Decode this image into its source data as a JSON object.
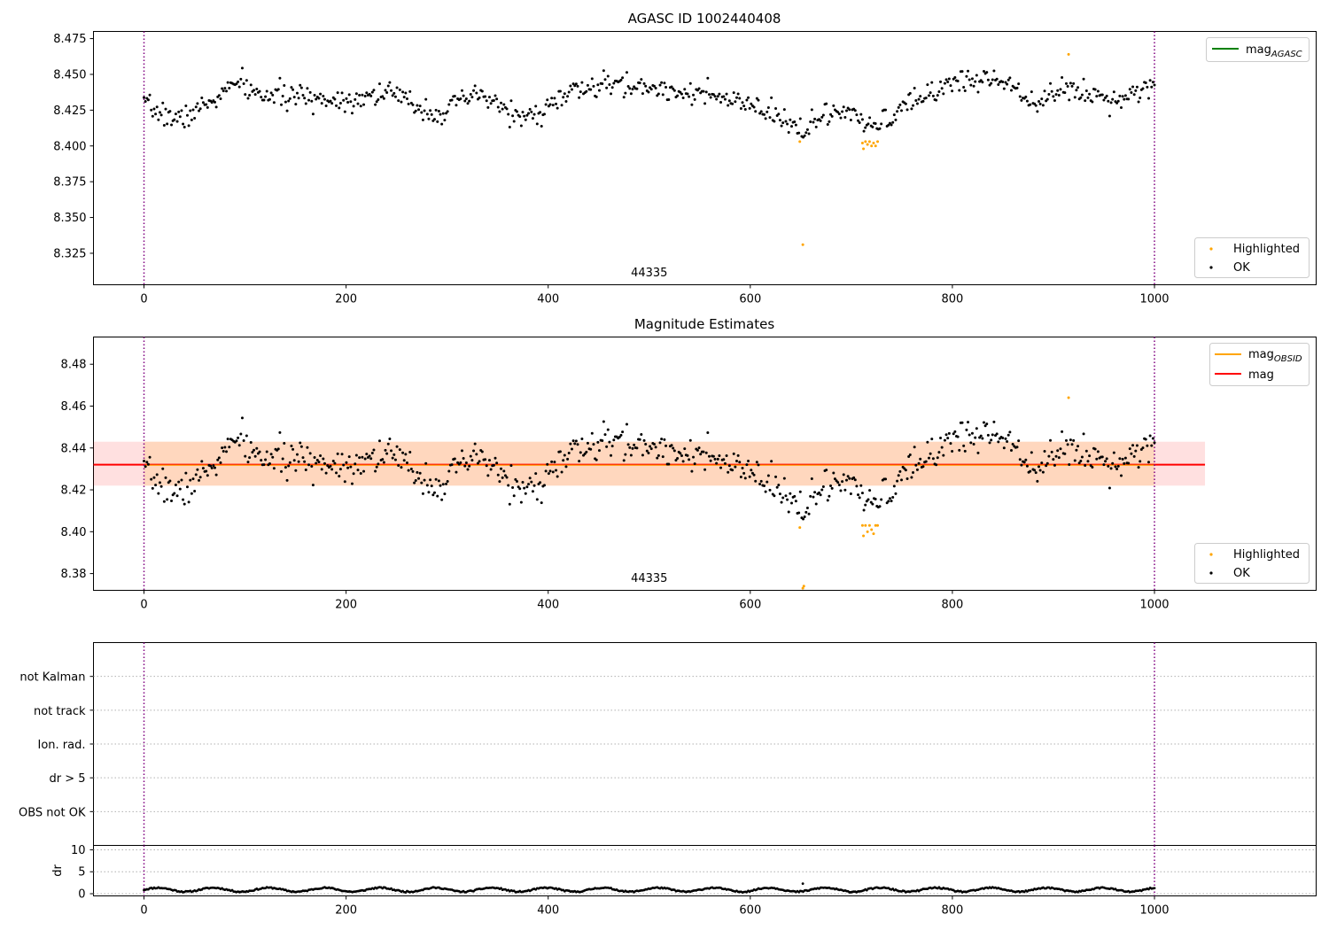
{
  "chart_data": [
    {
      "type": "scatter",
      "title": "AGASC ID 1002440408",
      "xlim": [
        -50,
        1160
      ],
      "ylim": [
        8.303,
        8.48
      ],
      "xticks": [
        0,
        200,
        400,
        600,
        800,
        1000
      ],
      "yticks": [
        8.325,
        8.35,
        8.375,
        8.4,
        8.425,
        8.45,
        8.475
      ],
      "ytick_labels": [
        "8.325",
        "8.350",
        "8.375",
        "8.400",
        "8.425",
        "8.450",
        "8.475"
      ],
      "vlines": [
        0,
        1000
      ],
      "obsid_label": {
        "text": "44335",
        "x": 500
      },
      "legend_lines": [
        {
          "label": "mag",
          "sub": "AGASC",
          "color": "#008000"
        }
      ],
      "legend_points": [
        {
          "label": "Highlighted",
          "color": "#ffa500"
        },
        {
          "label": "OK",
          "color": "#000000"
        }
      ],
      "highlighted_points": [
        [
          649,
          8.403
        ],
        [
          652,
          8.331
        ],
        [
          711,
          8.402
        ],
        [
          712,
          8.398
        ],
        [
          714,
          8.403
        ],
        [
          716,
          8.401
        ],
        [
          718,
          8.403
        ],
        [
          720,
          8.4
        ],
        [
          722,
          8.402
        ],
        [
          724,
          8.4
        ],
        [
          726,
          8.403
        ],
        [
          915,
          8.464
        ]
      ],
      "series_trend": {
        "knots": [
          [
            0,
            8.428
          ],
          [
            35,
            8.418
          ],
          [
            60,
            8.428
          ],
          [
            95,
            8.445
          ],
          [
            110,
            8.436
          ],
          [
            200,
            8.432
          ],
          [
            240,
            8.438
          ],
          [
            290,
            8.422
          ],
          [
            330,
            8.436
          ],
          [
            380,
            8.418
          ],
          [
            420,
            8.437
          ],
          [
            460,
            8.443
          ],
          [
            540,
            8.438
          ],
          [
            600,
            8.428
          ],
          [
            650,
            8.412
          ],
          [
            690,
            8.425
          ],
          [
            720,
            8.412
          ],
          [
            760,
            8.43
          ],
          [
            800,
            8.445
          ],
          [
            850,
            8.447
          ],
          [
            880,
            8.432
          ],
          [
            920,
            8.44
          ],
          [
            960,
            8.432
          ],
          [
            1000,
            8.444
          ]
        ],
        "n_points": 700,
        "noise": 0.004,
        "seed": 7
      }
    },
    {
      "type": "scatter",
      "title": "Magnitude Estimates",
      "xlim": [
        -50,
        1160
      ],
      "ylim": [
        8.372,
        8.493
      ],
      "xticks": [
        0,
        200,
        400,
        600,
        800,
        1000
      ],
      "yticks": [
        8.38,
        8.4,
        8.42,
        8.44,
        8.46,
        8.48
      ],
      "ytick_labels": [
        "8.38",
        "8.40",
        "8.42",
        "8.44",
        "8.46",
        "8.48"
      ],
      "vlines": [
        0,
        1000
      ],
      "mag_band": {
        "mag": 8.432,
        "low": 8.422,
        "high": 8.443,
        "x_end": 1050
      },
      "mag_obsid_line": {
        "value": 8.432,
        "x_start": 0,
        "x_end": 1000
      },
      "obsid_label": {
        "text": "44335",
        "x": 500
      },
      "legend_lines": [
        {
          "label": "mag",
          "sub": "OBSID",
          "color": "#ffa500"
        },
        {
          "label": "mag",
          "sub": "",
          "color": "#ff0000"
        }
      ],
      "legend_points": [
        {
          "label": "Highlighted",
          "color": "#ffa500"
        },
        {
          "label": "OK",
          "color": "#000000"
        }
      ],
      "highlighted_points": [
        [
          649,
          8.402
        ],
        [
          652,
          8.373
        ],
        [
          653,
          8.374
        ],
        [
          711,
          8.403
        ],
        [
          712,
          8.398
        ],
        [
          714,
          8.403
        ],
        [
          716,
          8.4
        ],
        [
          718,
          8.403
        ],
        [
          720,
          8.401
        ],
        [
          722,
          8.399
        ],
        [
          724,
          8.403
        ],
        [
          726,
          8.403
        ],
        [
          915,
          8.464
        ]
      ],
      "series_trend": {
        "knots": [
          [
            0,
            8.428
          ],
          [
            35,
            8.418
          ],
          [
            60,
            8.428
          ],
          [
            95,
            8.445
          ],
          [
            110,
            8.436
          ],
          [
            200,
            8.432
          ],
          [
            240,
            8.438
          ],
          [
            290,
            8.422
          ],
          [
            330,
            8.436
          ],
          [
            380,
            8.418
          ],
          [
            420,
            8.437
          ],
          [
            460,
            8.443
          ],
          [
            540,
            8.438
          ],
          [
            600,
            8.428
          ],
          [
            650,
            8.412
          ],
          [
            690,
            8.425
          ],
          [
            720,
            8.412
          ],
          [
            760,
            8.43
          ],
          [
            800,
            8.445
          ],
          [
            850,
            8.447
          ],
          [
            880,
            8.432
          ],
          [
            920,
            8.44
          ],
          [
            960,
            8.432
          ],
          [
            1000,
            8.444
          ]
        ],
        "n_points": 700,
        "noise": 0.004,
        "seed": 7
      }
    },
    {
      "type": "scatter",
      "xlim": [
        -50,
        1160
      ],
      "ylim": [
        0,
        6
      ],
      "categories": [
        "not Kalman",
        "not track",
        "Ion. rad.",
        "dr > 5",
        "OBS not OK"
      ],
      "category_y": [
        5,
        4,
        3,
        2,
        1
      ],
      "flag_points": [],
      "vlines": [
        0,
        1000
      ]
    },
    {
      "type": "scatter",
      "ylabel": "dr",
      "xlim": [
        -50,
        1160
      ],
      "ylim": [
        -0.5,
        11
      ],
      "xticks": [
        0,
        200,
        400,
        600,
        800,
        1000
      ],
      "yticks": [
        0,
        5,
        10
      ],
      "ytick_labels": [
        "0",
        "5",
        "10"
      ],
      "vlines": [
        0,
        1000
      ],
      "extra_points": [
        [
          652,
          2.3
        ]
      ],
      "series_trend": {
        "base": 0.9,
        "amp": 0.45,
        "period": 55,
        "n_points": 700,
        "seed": 11
      }
    }
  ]
}
